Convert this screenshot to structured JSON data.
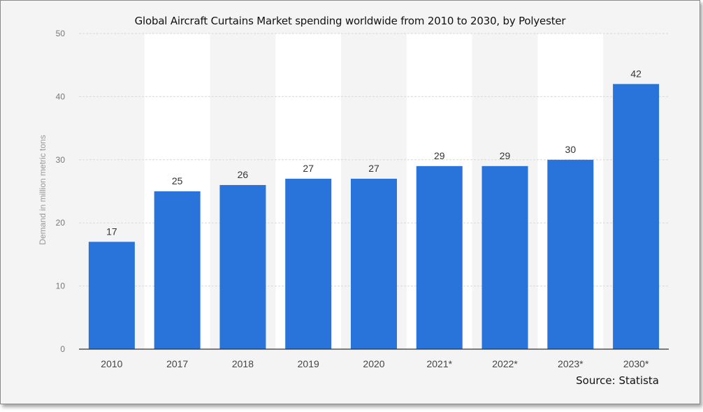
{
  "chart_data": {
    "type": "bar",
    "title": "Global Aircraft Curtains Market spending worldwide from 2010 to 2030, by Polyester",
    "ylabel": "Demand in million metric tons",
    "xlabel": "",
    "categories": [
      "2010",
      "2017",
      "2018",
      "2019",
      "2020",
      "2021*",
      "2022*",
      "2023*",
      "2030*"
    ],
    "values": [
      17,
      25,
      26,
      27,
      27,
      29,
      29,
      30,
      42
    ],
    "ylim": [
      0,
      50
    ],
    "yticks": [
      0,
      10,
      20,
      30,
      40,
      50
    ],
    "grid": true,
    "legend": "none",
    "bar_color": "#2874db",
    "source": "Source: Statista"
  }
}
